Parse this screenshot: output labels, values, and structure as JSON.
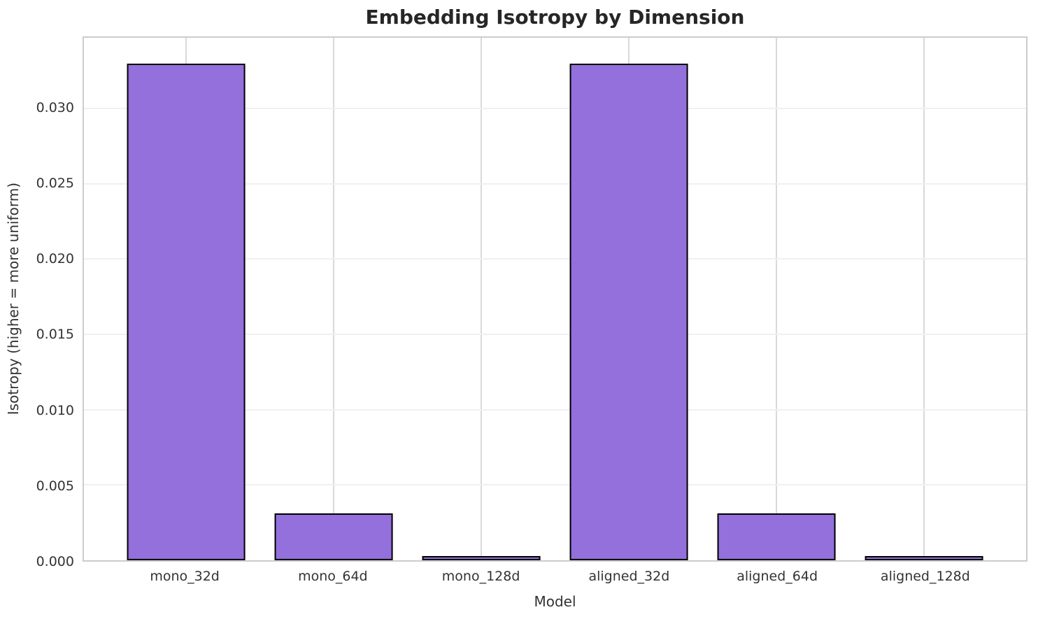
{
  "chart_data": {
    "type": "bar",
    "title": "Embedding Isotropy by Dimension",
    "xlabel": "Model",
    "ylabel": "Isotropy (higher = more uniform)",
    "categories": [
      "mono_32d",
      "mono_64d",
      "mono_128d",
      "aligned_32d",
      "aligned_64d",
      "aligned_128d"
    ],
    "values": [
      0.033,
      0.0031,
      0.0003,
      0.033,
      0.0031,
      0.0003
    ],
    "ylim": [
      0,
      0.0347
    ],
    "yticks": [
      0,
      0.005,
      0.01,
      0.015,
      0.02,
      0.025,
      0.03
    ],
    "ytick_decimals": 3,
    "xlim": [
      -0.69,
      5.69
    ],
    "bar_width_units": 0.8,
    "grid": true,
    "legend": null,
    "colors": {
      "bar_fill": "#9370DB",
      "bar_edge": "#000000",
      "grid_horizontal": "#f0f0f0",
      "grid_vertical": "#d9d9d9",
      "spine": "#cccccc",
      "tick_text": "#333333",
      "title_text": "#262626",
      "background": "#ffffff"
    }
  }
}
